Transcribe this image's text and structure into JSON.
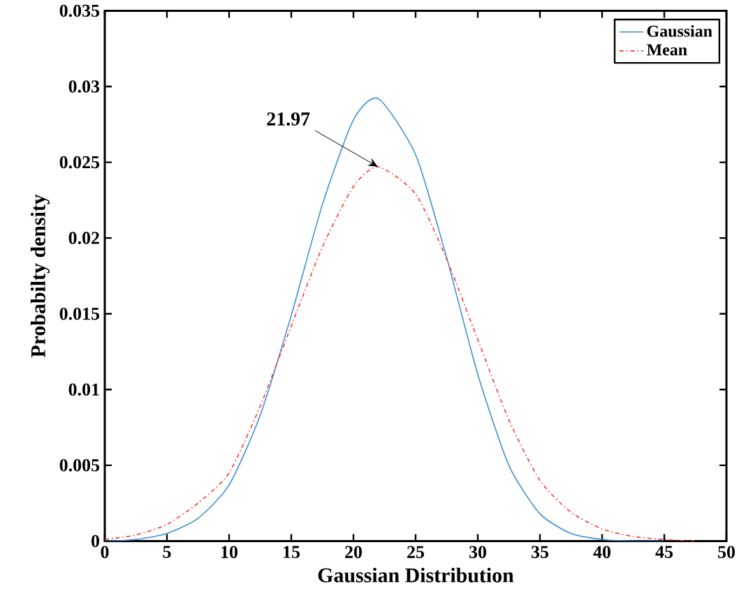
{
  "chart_data": {
    "type": "line",
    "xlabel": "Gaussian Distribution",
    "ylabel": "Probabilty density",
    "x": [
      0,
      2.5,
      5,
      7.5,
      10,
      12.5,
      15,
      17.5,
      20,
      22,
      25,
      27.5,
      30,
      32.5,
      35,
      37.5,
      40,
      42.5,
      45,
      47.5
    ],
    "series": [
      {
        "name": "Gaussian",
        "color": "#3d8fd6",
        "line_style": "solid",
        "values": [
          0,
          0.0001,
          0.0005,
          0.0015,
          0.0037,
          0.0083,
          0.0149,
          0.0222,
          0.0278,
          0.0292,
          0.0255,
          0.0187,
          0.011,
          0.005,
          0.0018,
          0.0005,
          0.0001,
          0,
          0,
          null
        ]
      },
      {
        "name": "Mean",
        "color": "#ff3333",
        "line_style": "dashdotted",
        "values": [
          0.0001,
          0.0004,
          0.0011,
          0.0025,
          0.0045,
          0.0089,
          0.0142,
          0.0194,
          0.0234,
          0.0247,
          0.0229,
          0.0186,
          0.0133,
          0.008,
          0.004,
          0.0019,
          0.0008,
          0.0003,
          0.0001,
          0
        ]
      }
    ],
    "xlim": [
      0,
      50
    ],
    "ylim": [
      0,
      0.035
    ],
    "xticks": [
      0,
      5,
      10,
      15,
      20,
      25,
      30,
      35,
      40,
      45,
      50
    ],
    "yticks": [
      0,
      0.005,
      0.01,
      0.015,
      0.02,
      0.025,
      0.03,
      0.035
    ],
    "annotations": [
      {
        "text": "21.97",
        "x": 21.97,
        "y": 0.0247
      }
    ],
    "legend": "top right",
    "grid": false,
    "marker": "none"
  }
}
